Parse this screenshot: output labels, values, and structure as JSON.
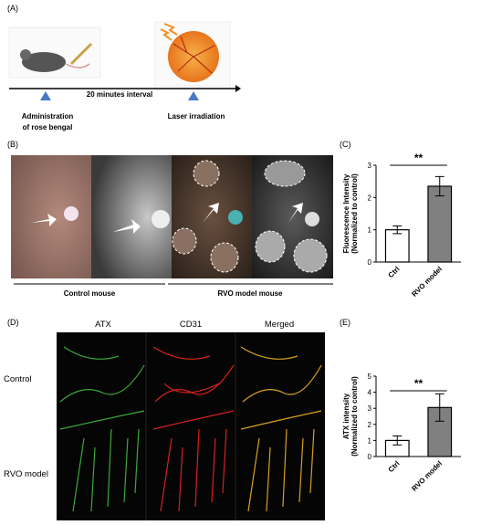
{
  "panel_labels": [
    "(A)",
    "(B)",
    "(C)",
    "(D)",
    "(E)"
  ],
  "timeline": {
    "interval": "20 minutes interval",
    "steps": [
      [
        "Administration",
        "of rose bengal"
      ],
      [
        "Laser irradiation"
      ]
    ]
  },
  "fundus": {
    "groups": [
      "Control mouse",
      "RVO model mouse"
    ]
  },
  "confocal": {
    "columns": [
      "ATX",
      "CD31",
      "Merged"
    ],
    "rows": [
      "Control",
      "RVO model"
    ]
  },
  "chart_data": [
    {
      "type": "bar",
      "ylabel": [
        "Fluorescence Intensity",
        "(Normalized to control)"
      ],
      "categories": [
        "Ctrl",
        "RVO model"
      ],
      "values": [
        1.0,
        2.35
      ],
      "errors": [
        0.12,
        0.3
      ],
      "colors": [
        "#ffffff",
        "#808080"
      ],
      "ylim": [
        0,
        3
      ],
      "yticks": [
        0,
        1,
        2,
        3
      ],
      "significance": "**"
    },
    {
      "type": "bar",
      "ylabel": [
        "ATX intensity",
        "(Normalized to control)"
      ],
      "categories": [
        "Ctrl",
        "RVO model"
      ],
      "values": [
        1.0,
        3.05
      ],
      "errors": [
        0.28,
        0.85
      ],
      "colors": [
        "#ffffff",
        "#808080"
      ],
      "ylim": [
        0,
        5
      ],
      "yticks": [
        0,
        1,
        2,
        3,
        4,
        5
      ],
      "significance": "**"
    }
  ]
}
